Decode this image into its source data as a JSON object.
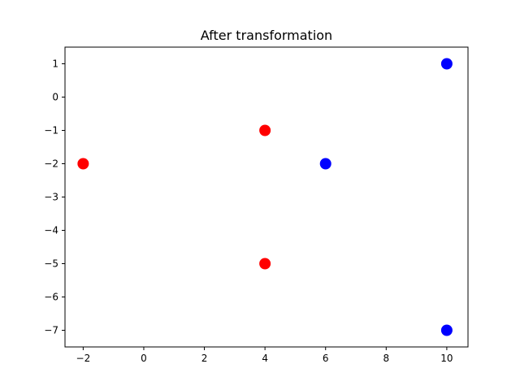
{
  "chart_data": {
    "type": "scatter",
    "title": "After transformation",
    "xlabel": "",
    "ylabel": "",
    "xlim": [
      -2.6,
      10.7
    ],
    "ylim": [
      -7.5,
      1.5
    ],
    "x_ticks": [
      -2,
      0,
      2,
      4,
      6,
      8,
      10
    ],
    "y_ticks": [
      1,
      0,
      -1,
      -2,
      -3,
      -4,
      -5,
      -6,
      -7
    ],
    "x_tick_labels": [
      "−2",
      "0",
      "2",
      "4",
      "6",
      "8",
      "10"
    ],
    "y_tick_labels": [
      "1",
      "0",
      "−1",
      "−2",
      "−3",
      "−4",
      "−5",
      "−6",
      "−7"
    ],
    "grid": false,
    "legend": "none",
    "series": [
      {
        "color": "#ff0000",
        "points": [
          {
            "x": -2,
            "y": -2
          },
          {
            "x": 4,
            "y": -1
          },
          {
            "x": 4,
            "y": -5
          }
        ]
      },
      {
        "color": "#0000ff",
        "points": [
          {
            "x": 6,
            "y": -2
          },
          {
            "x": 10,
            "y": 1
          },
          {
            "x": 10,
            "y": -7
          }
        ]
      }
    ]
  }
}
